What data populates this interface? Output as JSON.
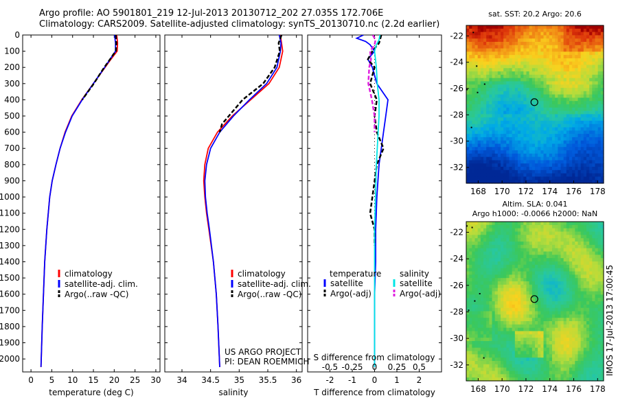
{
  "header": {
    "line1": "Argo profile: AO 5901801_219 12-Jul-2013 20130712_202 27.035S 172.706E",
    "line2": "Climatology: CARS2009. Satellite-adjusted climatology: synTS_20130710.nc (2.2d earlier)"
  },
  "credits": {
    "project": "US ARGO PROJECT",
    "pi": "PI: DEAN ROEMMICH",
    "imos": "IMOS 17-Jul-2013 17:00:45"
  },
  "colors": {
    "climatology": "#ff0000",
    "satellite": "#0000ff",
    "argo": "#000000",
    "sal_satellite": "#00e5e5",
    "sal_argo": "#e020e0"
  },
  "chart_data": [
    {
      "type": "line",
      "id": "temperature-profile",
      "xlabel": "temperature (deg C)",
      "ylabel": "",
      "xlim": [
        -2,
        31
      ],
      "ylim": [
        2080,
        0
      ],
      "xticks": [
        0,
        5,
        10,
        15,
        20,
        25,
        30
      ],
      "yticks": [
        0,
        100,
        200,
        300,
        400,
        500,
        600,
        700,
        800,
        900,
        1000,
        1100,
        1200,
        1300,
        1400,
        1500,
        1600,
        1700,
        1800,
        1900,
        2000
      ],
      "legend": [
        "climatology",
        "satellite-adj. clim.",
        "Argo(..raw -QC)"
      ],
      "series": [
        {
          "name": "climatology",
          "color": "#ff0000",
          "depth": [
            0,
            50,
            100,
            150,
            200,
            300,
            400,
            500,
            600,
            700,
            800,
            900,
            1000,
            1200,
            1400,
            1600,
            1800,
            2050
          ],
          "values": [
            20.6,
            20.8,
            20.7,
            19.2,
            17.8,
            15.0,
            12.2,
            9.8,
            8.2,
            7.0,
            6.0,
            5.1,
            4.5,
            3.8,
            3.3,
            3.0,
            2.7,
            2.4
          ]
        },
        {
          "name": "satellite-adj. clim.",
          "color": "#0000ff",
          "depth": [
            0,
            50,
            100,
            150,
            200,
            300,
            400,
            500,
            600,
            700,
            800,
            900,
            1000,
            1200,
            1400,
            1600,
            1800,
            2050
          ],
          "values": [
            20.1,
            20.3,
            20.3,
            19.0,
            17.7,
            15.0,
            12.3,
            9.9,
            8.3,
            7.0,
            6.0,
            5.1,
            4.5,
            3.8,
            3.3,
            3.0,
            2.7,
            2.4
          ]
        },
        {
          "name": "Argo(..raw -QC)",
          "color": "#000000",
          "depth": [
            0,
            50,
            100,
            120,
            150,
            200,
            300,
            400
          ],
          "values": [
            20.4,
            20.5,
            20.4,
            19.8,
            19.0,
            17.6,
            15.1,
            12.3
          ]
        }
      ]
    },
    {
      "type": "line",
      "id": "salinity-profile",
      "xlabel": "salinity",
      "ylabel": "",
      "xlim": [
        33.7,
        36.1
      ],
      "ylim": [
        2080,
        0
      ],
      "xticks": [
        34,
        34.5,
        35,
        35.5,
        36
      ],
      "legend": [
        "climatology",
        "satellite-adj. clim.",
        "Argo(..raw -QC)"
      ],
      "series": [
        {
          "name": "climatology",
          "color": "#ff0000",
          "depth": [
            0,
            50,
            100,
            200,
            300,
            400,
            500,
            600,
            700,
            800,
            900,
            1000,
            1100,
            1200,
            1400,
            1600,
            1800,
            2050
          ],
          "values": [
            35.72,
            35.74,
            35.76,
            35.7,
            35.52,
            35.2,
            34.88,
            34.62,
            34.46,
            34.4,
            34.38,
            34.4,
            34.43,
            34.47,
            34.55,
            34.6,
            34.63,
            34.66
          ]
        },
        {
          "name": "satellite-adj. clim.",
          "color": "#0000ff",
          "depth": [
            0,
            50,
            100,
            200,
            300,
            400,
            500,
            600,
            700,
            800,
            900,
            1000,
            1100,
            1200,
            1400,
            1600,
            1800,
            2050
          ],
          "values": [
            35.7,
            35.73,
            35.72,
            35.66,
            35.48,
            35.18,
            34.9,
            34.66,
            34.5,
            34.43,
            34.4,
            34.41,
            34.44,
            34.48,
            34.55,
            34.6,
            34.63,
            34.66
          ]
        },
        {
          "name": "Argo(..raw -QC)",
          "color": "#000000",
          "depth": [
            0,
            50,
            100,
            200,
            300,
            400,
            500,
            550,
            600
          ],
          "values": [
            35.74,
            35.69,
            35.71,
            35.62,
            35.42,
            35.06,
            34.82,
            34.7,
            34.66
          ]
        }
      ]
    },
    {
      "type": "line",
      "id": "difference-profile",
      "xlabel": "T difference from climatology",
      "x2label": "S difference from climatology",
      "xlim": [
        -3,
        3
      ],
      "ylim": [
        2080,
        0
      ],
      "xticks": [
        -2,
        -1,
        0,
        1,
        2
      ],
      "x2ticks": [
        "-0.5",
        "-0.25",
        "0",
        "0.25",
        "0.5"
      ],
      "legend_temperature": {
        "title": "temperature",
        "items": [
          "satellite",
          "Argo(-adj)"
        ]
      },
      "legend_salinity": {
        "title": "salinity",
        "items": [
          "satellite",
          "Argo(-adj)"
        ]
      },
      "series": [
        {
          "name": "temperature satellite",
          "color": "#0000ff",
          "depth": [
            0,
            20,
            40,
            60,
            100,
            150,
            200,
            300,
            400,
            500,
            600,
            700,
            800,
            1000,
            1200,
            1400,
            1600,
            2050
          ],
          "values": [
            -0.5,
            -0.8,
            -0.4,
            -0.2,
            0.0,
            -0.3,
            -0.1,
            0.1,
            0.6,
            0.5,
            0.4,
            0.3,
            0.2,
            0.1,
            0.05,
            0.05,
            0.0,
            0.0
          ]
        },
        {
          "name": "temperature Argo(-adj)",
          "color": "#000000",
          "depth": [
            0,
            50,
            100,
            150,
            200,
            300,
            400,
            500,
            600,
            700,
            800,
            1000,
            1100,
            1200,
            1300
          ],
          "values": [
            0.3,
            0.2,
            -0.1,
            -0.3,
            0.0,
            -0.2,
            0.1,
            0.0,
            0.1,
            0.4,
            0.1,
            -0.1,
            -0.2,
            0.0,
            0.0
          ]
        },
        {
          "name": "salinity satellite",
          "color": "#00e5e5",
          "depth": [
            0,
            30,
            60,
            100,
            200,
            300,
            400,
            500,
            600,
            800,
            1000,
            1200,
            1600,
            2050
          ],
          "values": [
            0.06,
            0.05,
            0.02,
            0.0,
            0.02,
            0.03,
            0.05,
            0.05,
            0.04,
            0.02,
            0.01,
            0.0,
            0.0,
            0.0
          ]
        },
        {
          "name": "salinity Argo(-adj)",
          "color": "#e020e0",
          "depth": [
            0,
            30,
            60,
            100,
            150,
            200,
            300,
            400,
            500,
            600
          ],
          "values": [
            -0.02,
            0.01,
            0.0,
            -0.05,
            -0.04,
            -0.06,
            -0.07,
            -0.03,
            0.0,
            0.0
          ]
        }
      ]
    },
    {
      "type": "heatmap",
      "id": "sst-map",
      "title": "sat. SST: 20.2  Argo: 20.6",
      "xticks": [
        168,
        170,
        172,
        174,
        176,
        178
      ],
      "yticks": [
        -22,
        -24,
        -26,
        -28,
        -30,
        -32
      ],
      "xlim": [
        167,
        178.5
      ],
      "ylim": [
        -33.2,
        -21.2
      ],
      "marker": {
        "lon": 172.706,
        "lat": -27.035
      }
    },
    {
      "type": "heatmap",
      "id": "sla-map",
      "title": "Altim. SLA: 0.041",
      "subtitle": "Argo h1000: -0.0066 h2000: NaN",
      "xticks": [
        168,
        170,
        172,
        174,
        176,
        178
      ],
      "yticks": [
        -22,
        -24,
        -26,
        -28,
        -30,
        -32
      ],
      "xlim": [
        167,
        178.5
      ],
      "ylim": [
        -33.2,
        -21.2
      ],
      "marker": {
        "lon": 172.706,
        "lat": -27.035
      }
    }
  ]
}
